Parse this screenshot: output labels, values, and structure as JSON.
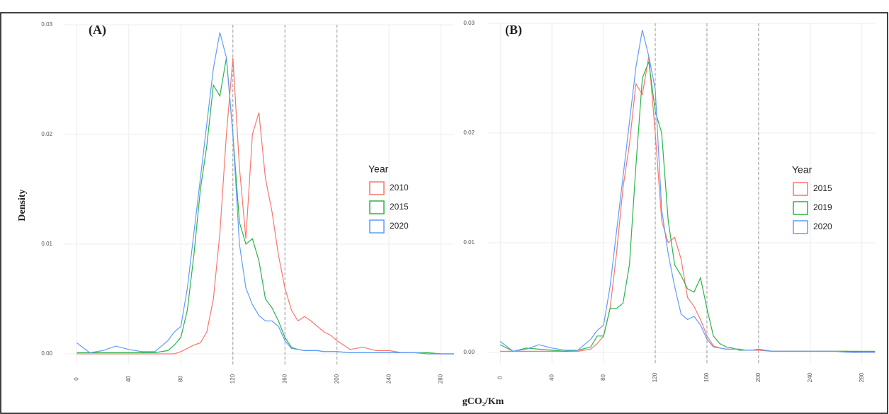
{
  "shared": {
    "ylabel": "Density",
    "xlabel": "gCO₂/Km"
  },
  "chart_data": [
    {
      "type": "line",
      "panel_label": "(A)",
      "legend_title": "Year",
      "legend": "right",
      "grid": true,
      "xlim": [
        -10,
        290
      ],
      "ylim": [
        -0.001,
        0.03
      ],
      "xticks": [
        0,
        40,
        80,
        120,
        160,
        200,
        240,
        280
      ],
      "yticks": [
        {
          "value": 0,
          "label": "0.00"
        },
        0.01,
        0.02,
        0.03
      ],
      "vlines": [
        120,
        160,
        200
      ],
      "x": [
        0,
        10,
        20,
        30,
        40,
        50,
        60,
        70,
        75,
        80,
        85,
        90,
        95,
        100,
        105,
        110,
        115,
        120,
        125,
        130,
        135,
        140,
        145,
        150,
        155,
        160,
        165,
        170,
        175,
        180,
        185,
        190,
        195,
        200,
        210,
        220,
        230,
        240,
        250,
        260,
        270,
        280,
        290
      ],
      "series": [
        {
          "name": "2010",
          "color": "#f8766d",
          "values": [
            0,
            0,
            0,
            0,
            0,
            0,
            0,
            0,
            0,
            0.0002,
            0.0005,
            0.0008,
            0.001,
            0.002,
            0.005,
            0.011,
            0.02,
            0.027,
            0.017,
            0.0105,
            0.02,
            0.022,
            0.016,
            0.013,
            0.009,
            0.006,
            0.004,
            0.003,
            0.0034,
            0.003,
            0.0025,
            0.002,
            0.0017,
            0.0012,
            0.0004,
            0.0006,
            0.0003,
            0.0003,
            0.0001,
            0.0001,
            0,
            0,
            0
          ]
        },
        {
          "name": "2015",
          "color": "#2db34a",
          "values": [
            0.0001,
            0.0001,
            0.0001,
            0.0001,
            0.0001,
            0.0001,
            0.0001,
            0.0003,
            0.0008,
            0.0015,
            0.004,
            0.009,
            0.015,
            0.019,
            0.0245,
            0.0235,
            0.027,
            0.02,
            0.012,
            0.01,
            0.0105,
            0.0085,
            0.005,
            0.0042,
            0.003,
            0.0015,
            0.0006,
            0.0004,
            0.0003,
            0.0003,
            0.0003,
            0.0002,
            0.0002,
            0.0002,
            0.0001,
            0.0001,
            0.0001,
            0.0001,
            0.0001,
            0.0001,
            0.0001,
            0,
            0
          ]
        },
        {
          "name": "2020",
          "color": "#619cff",
          "values": [
            0.001,
            0.0001,
            0.0003,
            0.0007,
            0.0004,
            0.0002,
            0.0002,
            0.0012,
            0.002,
            0.0025,
            0.006,
            0.011,
            0.016,
            0.021,
            0.026,
            0.0293,
            0.027,
            0.02,
            0.01,
            0.006,
            0.0045,
            0.0035,
            0.003,
            0.003,
            0.0025,
            0.0012,
            0.0005,
            0.0004,
            0.0003,
            0.0003,
            0.0003,
            0.0002,
            0.0002,
            0.0002,
            0.0001,
            0.0001,
            0.0001,
            0.0001,
            0.0001,
            0.0001,
            0,
            0,
            0
          ]
        }
      ]
    },
    {
      "type": "line",
      "panel_label": "(B)",
      "legend_title": "Year",
      "legend": "right",
      "grid": true,
      "xlim": [
        -10,
        290
      ],
      "ylim": [
        -0.001,
        0.03
      ],
      "xticks": [
        0,
        40,
        80,
        120,
        160,
        200,
        240,
        280
      ],
      "yticks": [
        {
          "value": 0,
          "label": "0.00"
        },
        0.01,
        0.02,
        0.03
      ],
      "vlines": [
        120,
        160,
        200
      ],
      "x": [
        0,
        10,
        20,
        30,
        40,
        50,
        60,
        70,
        75,
        80,
        85,
        90,
        95,
        100,
        105,
        110,
        115,
        120,
        125,
        130,
        135,
        140,
        145,
        150,
        155,
        160,
        165,
        170,
        175,
        180,
        185,
        190,
        195,
        200,
        210,
        220,
        230,
        240,
        250,
        260,
        270,
        280,
        290
      ],
      "series": [
        {
          "name": "2015",
          "color": "#f8766d",
          "values": [
            0.0001,
            0.0001,
            0.0001,
            0.0001,
            0.0001,
            0.0001,
            0.0001,
            0.0003,
            0.0008,
            0.0015,
            0.004,
            0.009,
            0.015,
            0.019,
            0.0245,
            0.0235,
            0.027,
            0.02,
            0.012,
            0.01,
            0.0105,
            0.0085,
            0.005,
            0.0042,
            0.003,
            0.0015,
            0.0006,
            0.0004,
            0.0003,
            0.0003,
            0.0003,
            0.0002,
            0.0002,
            0.0002,
            0.0001,
            0.0001,
            0.0001,
            0.0001,
            0.0001,
            0.0001,
            0.0001,
            0,
            0
          ]
        },
        {
          "name": "2019",
          "color": "#2db34a",
          "values": [
            0.0007,
            0.0001,
            0.0004,
            0.0003,
            0.0002,
            0.0001,
            0.0002,
            0.0005,
            0.0015,
            0.0015,
            0.004,
            0.004,
            0.0045,
            0.008,
            0.017,
            0.025,
            0.0265,
            0.022,
            0.02,
            0.012,
            0.008,
            0.007,
            0.0058,
            0.0055,
            0.0068,
            0.004,
            0.0015,
            0.0008,
            0.0005,
            0.0004,
            0.0002,
            0.0002,
            0.0002,
            0.0003,
            0.0001,
            0.0001,
            0.0001,
            0.0001,
            0.0001,
            0.0001,
            0.0001,
            0.0001,
            0.0001
          ]
        },
        {
          "name": "2020",
          "color": "#619cff",
          "values": [
            0.001,
            0.0001,
            0.0003,
            0.0007,
            0.0004,
            0.0002,
            0.0002,
            0.0012,
            0.002,
            0.0025,
            0.006,
            0.011,
            0.016,
            0.021,
            0.026,
            0.0294,
            0.027,
            0.024,
            0.013,
            0.009,
            0.006,
            0.0035,
            0.003,
            0.0033,
            0.0025,
            0.0012,
            0.0005,
            0.0004,
            0.0003,
            0.0003,
            0.0003,
            0.0002,
            0.0002,
            0.0003,
            0.0001,
            0.0001,
            0.0001,
            0.0001,
            0.0001,
            0.0001,
            0,
            0,
            0
          ]
        }
      ]
    }
  ]
}
